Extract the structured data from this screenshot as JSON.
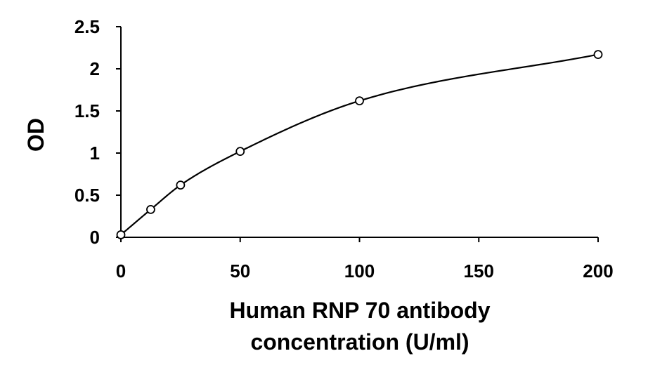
{
  "chart_data": {
    "type": "scatter",
    "title": "",
    "xlabel_lines": [
      "Human RNP 70 antibody",
      "concentration (U/ml)"
    ],
    "ylabel": "OD",
    "xlim": [
      0,
      200
    ],
    "ylim": [
      0,
      2.5
    ],
    "x_ticks": [
      0,
      50,
      100,
      150,
      200
    ],
    "x_tick_labels": [
      "0",
      "50",
      "100",
      "150",
      "200"
    ],
    "y_ticks": [
      0,
      0.5,
      1,
      1.5,
      2,
      2.5
    ],
    "y_tick_labels": [
      "0",
      "0.5",
      "1",
      "1.5",
      "2",
      "2.5"
    ],
    "grid": false,
    "legend": "none",
    "series": [
      {
        "style": "open-circle-markers-with-smooth-fit-curve",
        "x": [
          0,
          12.5,
          25,
          50,
          100,
          200
        ],
        "y": [
          0.03,
          0.33,
          0.62,
          1.02,
          1.62,
          2.17
        ]
      }
    ],
    "colors": {
      "marker_edge": "#000000",
      "marker_fill": "#ffffff",
      "line": "#000000"
    }
  }
}
